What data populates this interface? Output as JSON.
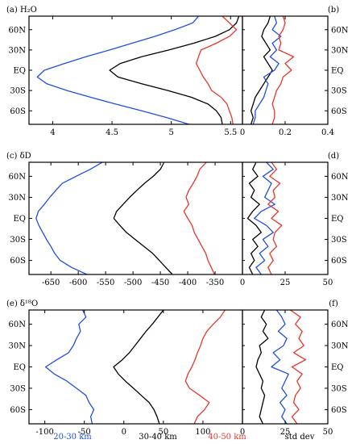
{
  "figure": {
    "bottom_legend": [
      {
        "label": "20-30 km",
        "color": "#1f4fe0"
      },
      {
        "label": "30-40 km",
        "color": "#000000"
      },
      {
        "label": "40-50 km",
        "color": "#e8352b"
      },
      {
        "label": "std dev",
        "color": "#000000"
      }
    ],
    "colors": {
      "s20_30": "#1f4fe0",
      "s30_40": "#000000",
      "s40_50": "#e8352b",
      "axis": "#000000"
    },
    "lat_ticks": [
      "60N",
      "30N",
      "EQ",
      "30S",
      "60S"
    ]
  },
  "chart_data": [
    {
      "type": "line",
      "panel_label": "(a) H₂O",
      "ylim": [
        80,
        -80
      ],
      "y_ticks": [
        60,
        30,
        0,
        -30,
        -60
      ],
      "left": {
        "xlim": [
          3.8,
          5.6
        ],
        "xticks": [
          4,
          4.5,
          5,
          5.5
        ],
        "xtick_labels": [
          "4",
          "4.5",
          "5",
          "5.5"
        ],
        "series": [
          {
            "key": "s20_30",
            "x": [
              5.23,
              5.18,
              5.03,
              4.86,
              4.67,
              4.48,
              4.28,
              4.1,
              3.93,
              3.87,
              3.95,
              4.12,
              4.32,
              4.53,
              4.75,
              4.96,
              5.15,
              5.31,
              5.34
            ],
            "y": [
              80,
              70,
              60,
              50,
              40,
              30,
              20,
              10,
              0,
              -10,
              -20,
              -30,
              -40,
              -50,
              -60,
              -70,
              -80,
              -85,
              -86
            ]
          },
          {
            "key": "s30_40",
            "x": [
              5.57,
              5.55,
              5.49,
              5.37,
              5.19,
              4.98,
              4.75,
              4.57,
              4.48,
              4.55,
              4.75,
              4.97,
              5.17,
              5.31,
              5.38,
              5.42,
              5.43,
              5.44
            ],
            "y": [
              80,
              70,
              60,
              50,
              40,
              30,
              20,
              10,
              0,
              -10,
              -20,
              -30,
              -40,
              -50,
              -60,
              -70,
              -80,
              -85
            ]
          },
          {
            "key": "s40_50",
            "x": [
              5.43,
              5.49,
              5.55,
              5.49,
              5.38,
              5.25,
              5.23,
              5.21,
              5.24,
              5.27,
              5.31,
              5.34,
              5.42,
              5.47,
              5.49,
              5.51,
              5.52,
              5.52
            ],
            "y": [
              80,
              70,
              60,
              50,
              40,
              30,
              20,
              10,
              0,
              -10,
              -20,
              -30,
              -40,
              -50,
              -60,
              -70,
              -80,
              -85
            ]
          }
        ]
      },
      "right": {
        "panel_label": "(b)",
        "xlim": [
          0,
          0.4
        ],
        "xticks": [
          0,
          0.2,
          0.4
        ],
        "xtick_labels": [
          "0",
          "0.2",
          "0.4"
        ],
        "series": [
          {
            "key": "s30_40",
            "x": [
              0.13,
              0.12,
              0.1,
              0.09,
              0.11,
              0.13,
              0.1,
              0.12,
              0.14,
              0.12,
              0.1,
              0.08,
              0.06,
              0.05,
              0.04,
              0.05,
              0.04,
              0.03
            ],
            "y": [
              80,
              70,
              60,
              50,
              40,
              30,
              20,
              10,
              0,
              -10,
              -20,
              -30,
              -40,
              -50,
              -60,
              -70,
              -80,
              -85
            ]
          },
          {
            "key": "s20_30",
            "x": [
              0.15,
              0.16,
              0.14,
              0.18,
              0.14,
              0.16,
              0.13,
              0.17,
              0.15,
              0.1,
              0.12,
              0.11,
              0.1,
              0.08,
              0.06,
              0.06,
              0.05,
              0.04
            ],
            "y": [
              80,
              70,
              60,
              50,
              40,
              30,
              20,
              10,
              0,
              -10,
              -20,
              -30,
              -40,
              -50,
              -60,
              -70,
              -80,
              -85
            ]
          },
          {
            "key": "s40_50",
            "x": [
              0.19,
              0.2,
              0.19,
              0.17,
              0.18,
              0.17,
              0.24,
              0.2,
              0.23,
              0.19,
              0.18,
              0.16,
              0.15,
              0.14,
              0.15,
              0.15,
              0.14,
              0.13
            ],
            "y": [
              80,
              70,
              60,
              50,
              40,
              30,
              20,
              10,
              0,
              -10,
              -20,
              -30,
              -40,
              -50,
              -60,
              -70,
              -80,
              -85
            ]
          }
        ]
      }
    },
    {
      "type": "line",
      "panel_label": "(c) δD",
      "ylim": [
        80,
        -80
      ],
      "y_ticks": [
        60,
        30,
        0,
        -30,
        -60
      ],
      "left": {
        "xlim": [
          -690,
          -300
        ],
        "xticks": [
          -650,
          -600,
          -550,
          -500,
          -450,
          -400,
          -350
        ],
        "xtick_labels": [
          "-650",
          "-600",
          "-550",
          "-500",
          "-450",
          "-400",
          "-350"
        ],
        "series": [
          {
            "key": "s20_30",
            "x": [
              -556,
              -578,
              -604,
              -629,
              -641,
              -652,
              -662,
              -673,
              -677,
              -672,
              -665,
              -658,
              -650,
              -643,
              -633,
              -612,
              -584,
              -562
            ],
            "y": [
              80,
              70,
              60,
              50,
              40,
              30,
              20,
              10,
              0,
              -10,
              -20,
              -30,
              -40,
              -50,
              -60,
              -70,
              -80,
              -85
            ]
          },
          {
            "key": "s30_40",
            "x": [
              -443,
              -450,
              -463,
              -479,
              -493,
              -506,
              -518,
              -530,
              -535,
              -524,
              -512,
              -496,
              -480,
              -464,
              -452,
              -440,
              -428,
              -418
            ],
            "y": [
              80,
              70,
              60,
              50,
              40,
              30,
              20,
              10,
              0,
              -10,
              -20,
              -30,
              -40,
              -50,
              -60,
              -70,
              -80,
              -85
            ]
          },
          {
            "key": "s40_50",
            "x": [
              -366,
              -378,
              -383,
              -390,
              -398,
              -403,
              -398,
              -407,
              -400,
              -392,
              -388,
              -381,
              -374,
              -367,
              -363,
              -357,
              -351,
              -349
            ],
            "y": [
              80,
              70,
              60,
              50,
              40,
              30,
              20,
              10,
              0,
              -10,
              -20,
              -30,
              -40,
              -50,
              -60,
              -70,
              -80,
              -85
            ]
          }
        ]
      },
      "right": {
        "panel_label": "(d)",
        "xlim": [
          0,
          50
        ],
        "xticks": [
          0,
          25,
          50
        ],
        "xtick_labels": [
          "0",
          "25",
          "50"
        ],
        "series": [
          {
            "key": "s30_40",
            "x": [
              8,
              6,
              9,
              4,
              7,
              5,
              10,
              6,
              3,
              8,
              11,
              6,
              9,
              5,
              7,
              4,
              6,
              5
            ],
            "y": [
              80,
              70,
              60,
              50,
              40,
              30,
              20,
              10,
              0,
              -10,
              -20,
              -30,
              -40,
              -50,
              -60,
              -70,
              -80,
              -85
            ]
          },
          {
            "key": "s20_30",
            "x": [
              14,
              18,
              12,
              17,
              15,
              13,
              19,
              11,
              7,
              14,
              18,
              12,
              15,
              10,
              13,
              8,
              11,
              9
            ],
            "y": [
              80,
              70,
              60,
              50,
              40,
              30,
              20,
              10,
              0,
              -10,
              -20,
              -30,
              -40,
              -50,
              -60,
              -70,
              -80,
              -85
            ]
          },
          {
            "key": "s40_50",
            "x": [
              17,
              20,
              16,
              22,
              18,
              19,
              15,
              21,
              17,
              23,
              19,
              18,
              20,
              16,
              18,
              15,
              17,
              16
            ],
            "y": [
              80,
              70,
              60,
              50,
              40,
              30,
              20,
              10,
              0,
              -10,
              -20,
              -30,
              -40,
              -50,
              -60,
              -70,
              -80,
              -85
            ]
          }
        ]
      }
    },
    {
      "type": "line",
      "panel_label": "(e) δ¹⁸O",
      "ylim": [
        80,
        -80
      ],
      "y_ticks": [
        60,
        30,
        0,
        -30,
        -60
      ],
      "left": {
        "xlim": [
          -120,
          150
        ],
        "xticks": [
          -100,
          -50,
          0,
          50,
          100
        ],
        "xtick_labels": [
          "-100",
          "-50",
          "0",
          "50",
          "100"
        ],
        "series": [
          {
            "key": "s20_30",
            "x": [
              -52,
              -48,
              -57,
              -55,
              -60,
              -64,
              -70,
              -85,
              -99,
              -88,
              -72,
              -60,
              -48,
              -44,
              -38,
              -42,
              -40,
              -39
            ],
            "y": [
              80,
              70,
              60,
              50,
              40,
              30,
              20,
              10,
              0,
              -10,
              -20,
              -30,
              -40,
              -50,
              -60,
              -70,
              -80,
              -85
            ]
          },
          {
            "key": "s30_40",
            "x": [
              50,
              43,
              36,
              28,
              21,
              14,
              7,
              -2,
              -13,
              -7,
              2,
              12,
              22,
              32,
              38,
              42,
              45,
              47
            ],
            "y": [
              80,
              70,
              60,
              50,
              40,
              30,
              20,
              10,
              0,
              -10,
              -20,
              -30,
              -40,
              -50,
              -60,
              -70,
              -80,
              -85
            ]
          },
          {
            "key": "s40_50",
            "x": [
              128,
              122,
              113,
              105,
              100,
              97,
              93,
              90,
              86,
              81,
              78,
              83,
              96,
              108,
              102,
              93,
              89,
              88
            ],
            "y": [
              80,
              70,
              60,
              50,
              40,
              30,
              20,
              10,
              0,
              -10,
              -20,
              -30,
              -40,
              -50,
              -60,
              -70,
              -80,
              -85
            ]
          }
        ]
      },
      "right": {
        "panel_label": "(f)",
        "xlim": [
          0,
          50
        ],
        "xticks": [
          0,
          25,
          50
        ],
        "xtick_labels": [
          "0",
          "25",
          "50"
        ],
        "series": [
          {
            "key": "s30_40",
            "x": [
              13,
              11,
              14,
              12,
              15,
              10,
              11,
              9,
              8,
              10,
              12,
              11,
              13,
              12,
              11,
              10,
              12,
              11
            ],
            "y": [
              80,
              70,
              60,
              50,
              40,
              30,
              20,
              10,
              0,
              -10,
              -20,
              -30,
              -40,
              -50,
              -60,
              -70,
              -80,
              -85
            ]
          },
          {
            "key": "s20_30",
            "x": [
              20,
              23,
              25,
              21,
              26,
              24,
              18,
              22,
              17,
              27,
              25,
              23,
              26,
              22,
              25,
              23,
              26,
              24
            ],
            "y": [
              80,
              70,
              60,
              50,
              40,
              30,
              20,
              10,
              0,
              -10,
              -20,
              -30,
              -40,
              -50,
              -60,
              -70,
              -80,
              -85
            ]
          },
          {
            "key": "s40_50",
            "x": [
              28,
              34,
              31,
              35,
              33,
              36,
              30,
              37,
              29,
              35,
              32,
              34,
              31,
              30,
              33,
              29,
              32,
              30
            ],
            "y": [
              80,
              70,
              60,
              50,
              40,
              30,
              20,
              10,
              0,
              -10,
              -20,
              -30,
              -40,
              -50,
              -60,
              -70,
              -80,
              -85
            ]
          }
        ]
      }
    }
  ]
}
